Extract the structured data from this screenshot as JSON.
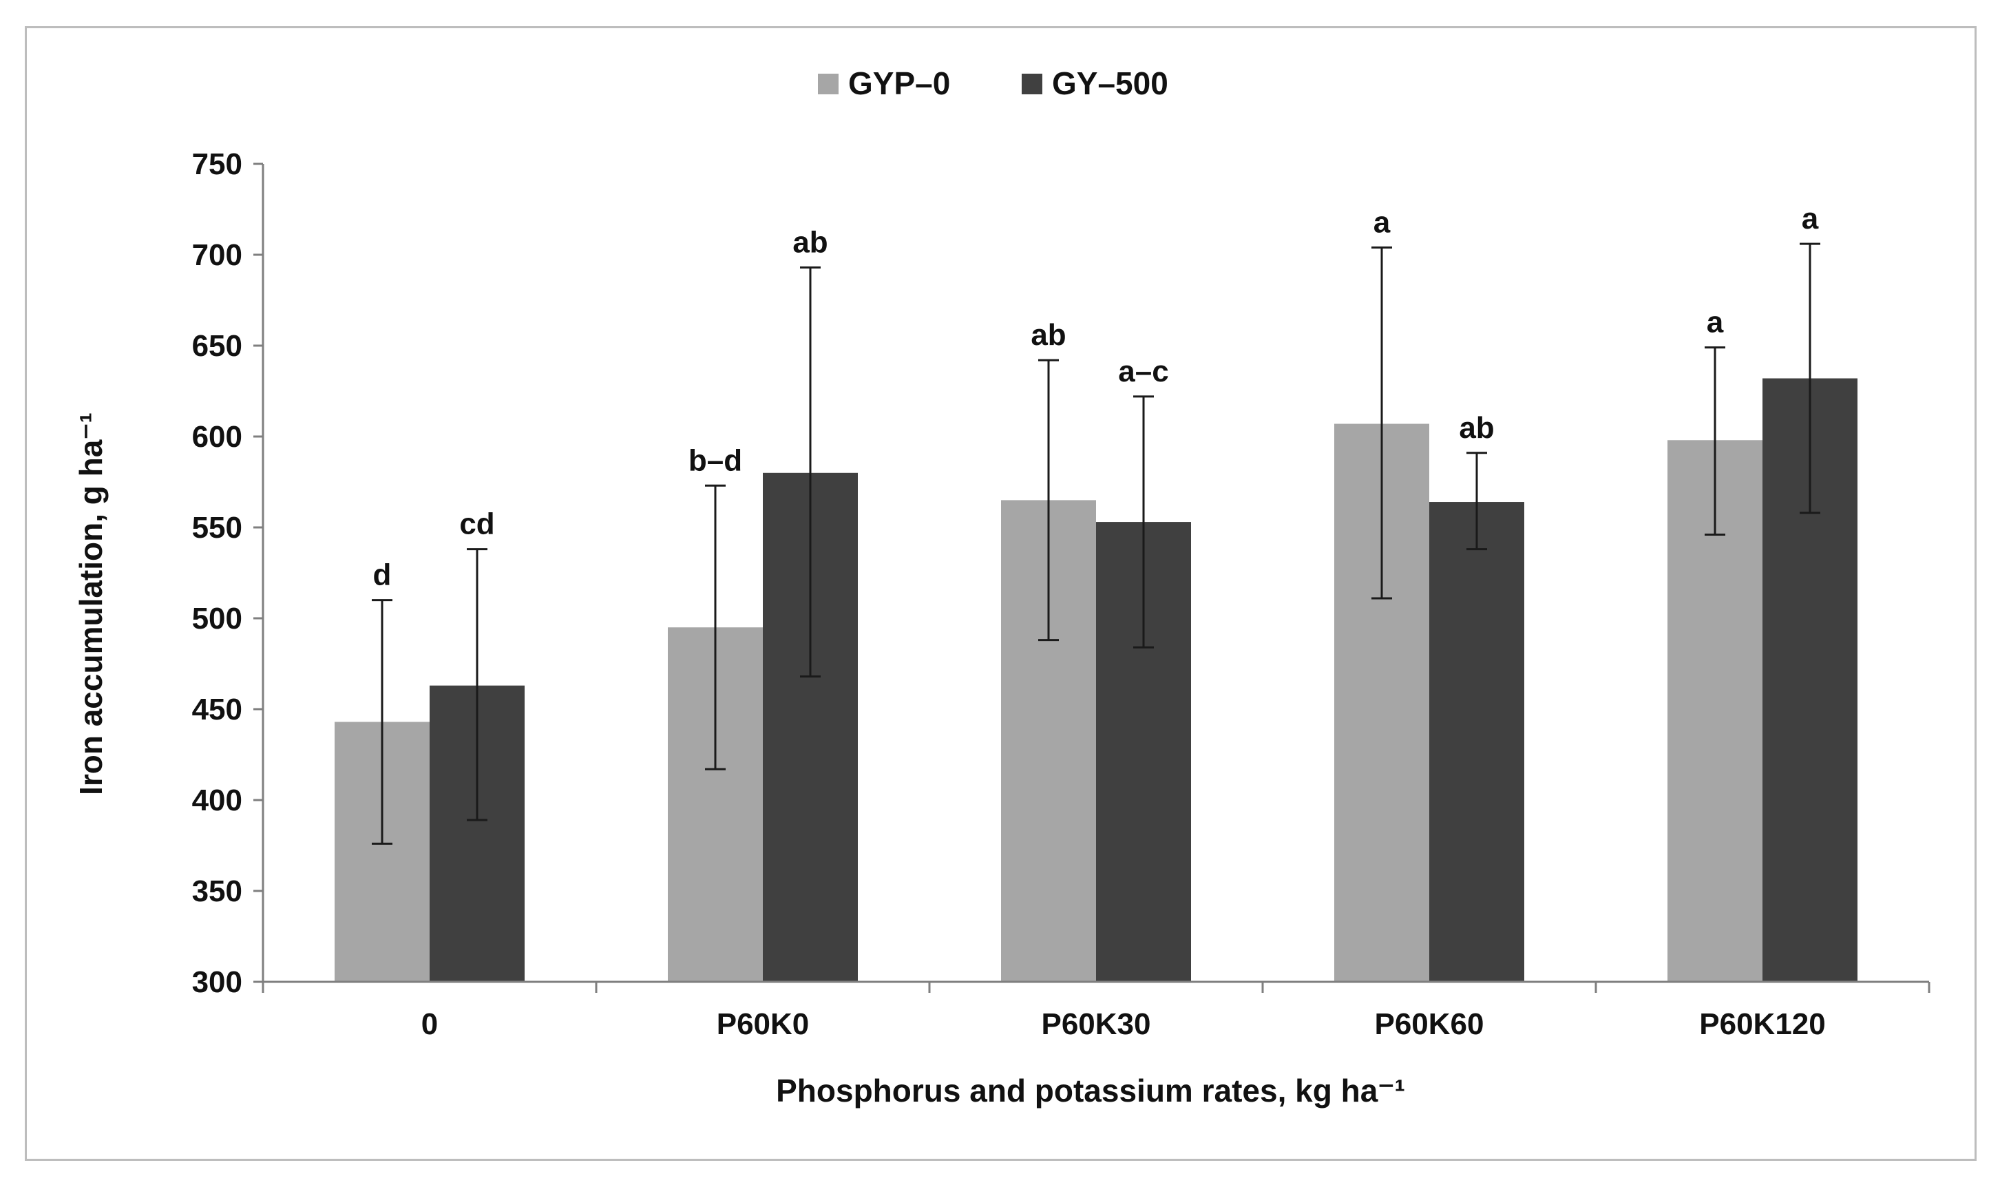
{
  "chart_data": {
    "type": "bar",
    "title": "",
    "xlabel": "Phosphorus and potassium rates, kg ha⁻¹",
    "ylabel": "Iron accumulation, g ha⁻¹",
    "ylim": [
      300,
      750
    ],
    "yticks": [
      300,
      350,
      400,
      450,
      500,
      550,
      600,
      650,
      700,
      750
    ],
    "categories": [
      "0",
      "P60K0",
      "P60K30",
      "P60K60",
      "P60K120"
    ],
    "legend_position": "top-center",
    "grid": false,
    "series": [
      {
        "name": "GYP–0",
        "color": "#a6a6a6",
        "values": [
          443,
          495,
          565,
          607,
          598
        ],
        "error_low": [
          376,
          417,
          488,
          511,
          546
        ],
        "error_high": [
          510,
          573,
          642,
          704,
          649
        ],
        "significance": [
          "d",
          "b–d",
          "ab",
          "a",
          "a"
        ]
      },
      {
        "name": "GY–500",
        "color": "#404040",
        "values": [
          463,
          580,
          553,
          564,
          632
        ],
        "error_low": [
          389,
          468,
          484,
          538,
          558
        ],
        "error_high": [
          538,
          693,
          622,
          591,
          706
        ],
        "significance": [
          "cd",
          "ab",
          "a–c",
          "ab",
          "a"
        ]
      }
    ]
  }
}
